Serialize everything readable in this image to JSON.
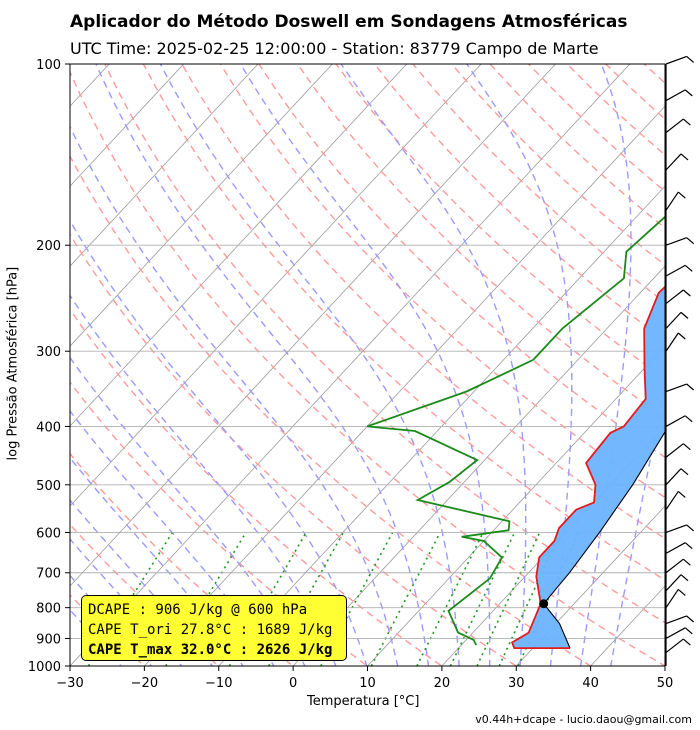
{
  "header": {
    "title": "Aplicador do Método Doswell em Sondagens Atmosféricas",
    "subtitle": "UTC Time: 2025-02-25 12:00:00 - Station: 83779 Campo de Marte"
  },
  "axes": {
    "xlabel": "Temperatura [°C]",
    "ylabel": "log Pressão Atmosférica [hPa]"
  },
  "cape_box": {
    "line1": "DCAPE : 906 J/kg @ 600 hPa",
    "line2": "CAPE T_ori 27.8°C : 1689 J/kg",
    "line3": "CAPE T_max 32.0°C : 2626 J/kg"
  },
  "footer": "v0.44h+dcape  -  lucio.daou@gmail.com",
  "chart_data": {
    "type": "line",
    "xlim": [
      -30,
      50
    ],
    "ylim": [
      1000,
      100
    ],
    "y_scale": "log",
    "grid": true,
    "x_ticks": [
      -30,
      -20,
      -10,
      0,
      10,
      20,
      30,
      40,
      50
    ],
    "y_ticks": [
      1000,
      900,
      800,
      700,
      600,
      500,
      400,
      300,
      200,
      100
    ],
    "colors": {
      "temperature": "#e41a1c",
      "dewpoint": "#1a8a1a",
      "parcel": "#000000",
      "cape_fill": "#6cb4ff",
      "dry_adiabat": "#ff9a9a",
      "moist_adiabat": "#9a9aff",
      "mixing_ratio": "#1a9a1a",
      "isotherm": "#9a9a9a",
      "box": "#ffff33"
    },
    "series": [
      {
        "key": "temperature",
        "points": [
          [
            35,
            934
          ],
          [
            27.5,
            934
          ],
          [
            26.5,
            914
          ],
          [
            27.5,
            880
          ],
          [
            25.5,
            788
          ],
          [
            21.5,
            710
          ],
          [
            19.5,
            660
          ],
          [
            19.5,
            620
          ],
          [
            18.5,
            590
          ],
          [
            18.5,
            550
          ],
          [
            20,
            535
          ],
          [
            18,
            500
          ],
          [
            14,
            460
          ],
          [
            13.5,
            410
          ],
          [
            14.5,
            400
          ],
          [
            14,
            360
          ],
          [
            10,
            320
          ],
          [
            5,
            275
          ],
          [
            2.5,
            240
          ],
          [
            3,
            210
          ],
          [
            2,
            170
          ],
          [
            1.5,
            150
          ],
          [
            3,
            130
          ],
          [
            3.5,
            122
          ],
          [
            6,
            113
          ],
          [
            8,
            108
          ],
          [
            8.5,
            104
          ]
        ]
      },
      {
        "key": "dewpoint",
        "points": [
          [
            22,
            923
          ],
          [
            21,
            905
          ],
          [
            18,
            880
          ],
          [
            14,
            810
          ],
          [
            15.5,
            715
          ],
          [
            14.5,
            660
          ],
          [
            10,
            620
          ],
          [
            6.5,
            610
          ],
          [
            12,
            595
          ],
          [
            11,
            575
          ],
          [
            -4,
            530
          ],
          [
            -2,
            495
          ],
          [
            -1,
            455
          ],
          [
            -13,
            407
          ],
          [
            -20,
            400
          ],
          [
            -11,
            350
          ],
          [
            -6,
            310
          ],
          [
            -6,
            275
          ],
          [
            -4,
            227
          ],
          [
            -7,
            205
          ],
          [
            -6,
            175
          ],
          [
            -3,
            140
          ],
          [
            0,
            126
          ],
          [
            -5,
            114
          ],
          [
            -8,
            108
          ],
          [
            -6,
            103
          ],
          [
            -5,
            100
          ]
        ]
      },
      {
        "key": "parcel",
        "points": [
          [
            35,
            934
          ],
          [
            30.5,
            850
          ],
          [
            25.9,
            788
          ],
          [
            25.5,
            700
          ],
          [
            24.5,
            600
          ],
          [
            23,
            500
          ],
          [
            20.5,
            400
          ],
          [
            17,
            320
          ],
          [
            13,
            260
          ],
          [
            9,
            215
          ],
          [
            5.5,
            180
          ],
          [
            2,
            150
          ],
          [
            -2,
            125
          ],
          [
            -6,
            100
          ]
        ]
      }
    ],
    "lfc_point": [
      25.9,
      788
    ]
  }
}
